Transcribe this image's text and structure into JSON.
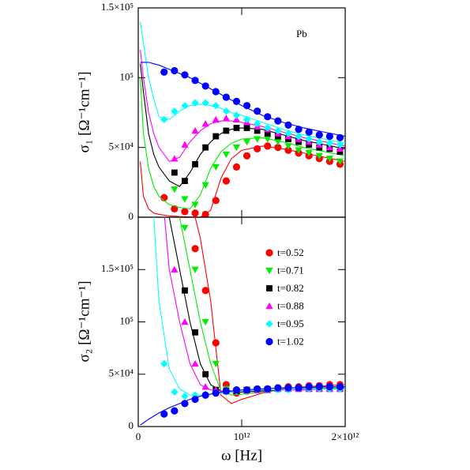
{
  "chart_data": [
    {
      "type": "scatter",
      "y_label": "σ₁ [Ω⁻¹cm⁻¹]",
      "annotation": "Pb",
      "xlim": [
        0,
        2000000000000
      ],
      "xticks": [
        0,
        1000000000000,
        2000000000000
      ],
      "ylim": [
        0,
        150000
      ],
      "yticks": [
        0,
        {
          "value": 50000,
          "label": "5×10⁴"
        },
        {
          "value": 100000,
          "label": "10⁵"
        },
        {
          "value": 150000,
          "label": "1.5×10⁵"
        }
      ],
      "x": [
        250000000000,
        350000000000,
        450000000000,
        550000000000,
        650000000000,
        750000000000,
        850000000000,
        950000000000,
        1050000000000,
        1150000000000,
        1250000000000,
        1350000000000,
        1450000000000,
        1550000000000,
        1650000000000,
        1750000000000,
        1850000000000,
        1950000000000
      ],
      "fit_x": [
        20000000000,
        50000000000,
        100000000000,
        150000000000,
        200000000000,
        300000000000,
        400000000000,
        500000000000,
        600000000000,
        700000000000,
        800000000000,
        900000000000,
        1000000000000,
        1200000000000,
        1400000000000,
        1600000000000,
        1800000000000,
        2000000000000
      ],
      "series": [
        {
          "color": "#ff0000",
          "marker": "circle",
          "values": [
            14000,
            6000,
            4000,
            3000,
            2000,
            12000,
            26000,
            36000,
            44000,
            49000,
            51000,
            50000,
            48000,
            46000,
            44000,
            42000,
            40000,
            38000
          ],
          "fit_values": [
            40000,
            15000,
            6000,
            3000,
            2000,
            1000,
            500,
            200,
            0,
            5000,
            28000,
            42000,
            48000,
            51000,
            49000,
            46000,
            43000,
            40000
          ]
        },
        {
          "color": "#00ee00",
          "marker": "tri-down",
          "values": [
            null,
            20000,
            13000,
            9000,
            23000,
            36000,
            45000,
            50000,
            54000,
            56000,
            56000,
            54000,
            51000,
            48000,
            46000,
            44000,
            42000,
            40000
          ],
          "fit_values": [
            100000,
            60000,
            35000,
            22000,
            15000,
            9000,
            7000,
            6000,
            16000,
            35000,
            47000,
            53000,
            56000,
            57000,
            54000,
            50000,
            47000,
            44000
          ]
        },
        {
          "color": "#000000",
          "marker": "square",
          "values": [
            null,
            32000,
            26000,
            38000,
            50000,
            58000,
            62000,
            64000,
            64000,
            62000,
            60000,
            58000,
            56000,
            54000,
            52000,
            50000,
            49000,
            47000
          ],
          "fit_values": [
            110000,
            90000,
            60000,
            45000,
            36000,
            26000,
            22000,
            32000,
            45000,
            54000,
            60000,
            63000,
            64000,
            63000,
            59000,
            55000,
            52000,
            49000
          ]
        },
        {
          "color": "#ff00ff",
          "marker": "tri-up",
          "values": [
            null,
            42000,
            52000,
            62000,
            67000,
            70000,
            71000,
            70000,
            68000,
            65000,
            63000,
            60000,
            58000,
            56000,
            54000,
            52000,
            50000,
            49000
          ],
          "fit_values": [
            120000,
            100000,
            75000,
            60000,
            50000,
            40000,
            43000,
            54000,
            62000,
            67000,
            69000,
            69000,
            68000,
            65000,
            61000,
            57000,
            54000,
            51000
          ]
        },
        {
          "color": "#00ffff",
          "marker": "diamond",
          "values": [
            70000,
            76000,
            80000,
            82000,
            82000,
            80000,
            76000,
            73000,
            70000,
            67000,
            64000,
            62000,
            60000,
            58000,
            56000,
            54000,
            53000,
            52000
          ],
          "fit_values": [
            140000,
            125000,
            100000,
            85000,
            72000,
            70000,
            76000,
            80000,
            81000,
            80000,
            78000,
            75000,
            73000,
            68000,
            63000,
            59000,
            56000,
            53000
          ]
        },
        {
          "color": "#0000ff",
          "marker": "circle",
          "values": [
            104000,
            105000,
            102000,
            98000,
            94000,
            90000,
            86000,
            83000,
            80000,
            76000,
            72000,
            69000,
            66000,
            63000,
            61000,
            59000,
            58000,
            57000
          ],
          "fit_values": [
            111000,
            111000,
            111000,
            110000,
            109000,
            106000,
            103000,
            100000,
            96000,
            92000,
            88000,
            84000,
            80000,
            73000,
            68000,
            64000,
            61000,
            58000
          ]
        }
      ]
    },
    {
      "type": "scatter",
      "x_label": "ω [Hz]",
      "y_label": "σ₂ [Ω⁻¹cm⁻¹]",
      "xlim": [
        0,
        2000000000000
      ],
      "xticks": [
        0,
        {
          "value": 1000000000000,
          "label": "10¹²"
        },
        {
          "value": 2000000000000,
          "label": "2×10¹²"
        }
      ],
      "ylim": [
        0,
        200000
      ],
      "yticks": [
        0,
        {
          "value": 50000,
          "label": "5×10⁴"
        },
        {
          "value": 100000,
          "label": "10⁵"
        },
        {
          "value": 150000,
          "label": "1.5×10⁵"
        }
      ],
      "x": [
        250000000000,
        350000000000,
        450000000000,
        550000000000,
        650000000000,
        750000000000,
        850000000000,
        950000000000,
        1050000000000,
        1150000000000,
        1250000000000,
        1350000000000,
        1450000000000,
        1550000000000,
        1650000000000,
        1750000000000,
        1850000000000,
        1950000000000
      ],
      "fit_x": [
        20000000000,
        50000000000,
        100000000000,
        150000000000,
        200000000000,
        300000000000,
        400000000000,
        500000000000,
        600000000000,
        700000000000,
        800000000000,
        900000000000,
        1000000000000,
        1200000000000,
        1400000000000,
        1600000000000,
        1800000000000,
        2000000000000
      ],
      "series": [
        {
          "name": "t=0.52",
          "color": "#ff0000",
          "marker": "circle",
          "values": [
            null,
            null,
            null,
            170000,
            130000,
            80000,
            40000,
            32000,
            34000,
            35000,
            36000,
            37000,
            38000,
            38000,
            39000,
            39000,
            40000,
            40000
          ],
          "fit_values": [
            3000000,
            2000000,
            1000000,
            600000,
            450000,
            300000,
            250000,
            220000,
            180000,
            120000,
            30000,
            22000,
            26000,
            32000,
            36000,
            38000,
            39000,
            40000
          ]
        },
        {
          "name": "t=0.71",
          "color": "#00ee00",
          "marker": "tri-down",
          "values": [
            null,
            null,
            190000,
            150000,
            100000,
            60000,
            36000,
            34000,
            35000,
            35000,
            36000,
            36000,
            37000,
            37000,
            38000,
            38000,
            38000,
            38000
          ],
          "fit_values": [
            3000000,
            1500000,
            800000,
            500000,
            380000,
            250000,
            200000,
            150000,
            100000,
            60000,
            34000,
            30000,
            31000,
            33000,
            35000,
            36000,
            37000,
            37000
          ]
        },
        {
          "name": "t=0.82",
          "color": "#000000",
          "marker": "square",
          "values": [
            null,
            null,
            130000,
            90000,
            50000,
            35000,
            34000,
            34000,
            35000,
            35000,
            35000,
            36000,
            36000,
            36000,
            36000,
            36000,
            36000,
            36000
          ],
          "fit_values": [
            3000000,
            1400000,
            700000,
            450000,
            330000,
            200000,
            150000,
            100000,
            60000,
            40000,
            34000,
            33000,
            33000,
            34000,
            35000,
            35000,
            36000,
            36000
          ]
        },
        {
          "name": "t=0.88",
          "color": "#ff00ff",
          "marker": "tri-up",
          "values": [
            null,
            150000,
            100000,
            60000,
            38000,
            35000,
            35000,
            35000,
            35000,
            35000,
            35000,
            36000,
            36000,
            36000,
            36000,
            36000,
            36000,
            36000
          ],
          "fit_values": [
            3000000,
            1300000,
            600000,
            380000,
            260000,
            150000,
            100000,
            60000,
            40000,
            35000,
            34000,
            34000,
            34000,
            35000,
            35000,
            35000,
            36000,
            36000
          ]
        },
        {
          "name": "t=0.95",
          "color": "#00ffff",
          "marker": "diamond",
          "values": [
            60000,
            33000,
            29000,
            30000,
            31000,
            32000,
            33000,
            34000,
            34000,
            35000,
            35000,
            35000,
            35000,
            36000,
            36000,
            36000,
            36000,
            36000
          ],
          "fit_values": [
            2500000,
            1000000,
            400000,
            200000,
            120000,
            55000,
            36000,
            30000,
            30000,
            31000,
            32000,
            33000,
            34000,
            35000,
            35000,
            36000,
            36000,
            36000
          ]
        },
        {
          "name": "t=1.02",
          "color": "#0000ff",
          "marker": "circle",
          "values": [
            12000,
            15000,
            22000,
            26000,
            30000,
            32000,
            34000,
            35000,
            35000,
            36000,
            36000,
            37000,
            37000,
            37000,
            38000,
            38000,
            38000,
            38000
          ],
          "fit_values": [
            1500,
            3500,
            7000,
            10000,
            13000,
            18000,
            22000,
            26000,
            29000,
            31000,
            33000,
            34000,
            35000,
            36000,
            37000,
            37000,
            38000,
            38000
          ]
        }
      ]
    }
  ]
}
